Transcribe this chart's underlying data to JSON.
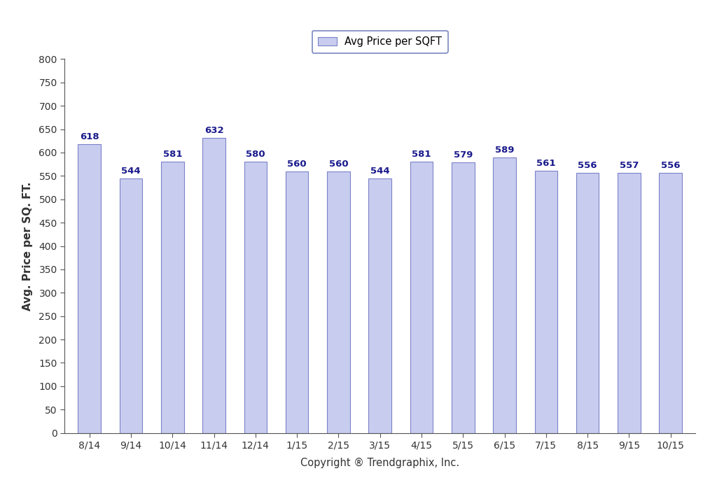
{
  "categories": [
    "8/14",
    "9/14",
    "10/14",
    "11/14",
    "12/14",
    "1/15",
    "2/15",
    "3/15",
    "4/15",
    "5/15",
    "6/15",
    "7/15",
    "8/15",
    "9/15",
    "10/15"
  ],
  "values": [
    618,
    544,
    581,
    632,
    580,
    560,
    560,
    544,
    581,
    579,
    589,
    561,
    556,
    557,
    556
  ],
  "bar_color": "#c8cdf0",
  "bar_edgecolor": "#7b82c8",
  "ylabel": "Avg. Price per SQ. FT.",
  "xlabel": "Copyright ® Trendgraphix, Inc.",
  "legend_label": "Avg Price per SQFT",
  "ylim": [
    0,
    800
  ],
  "yticks": [
    0,
    50,
    100,
    150,
    200,
    250,
    300,
    350,
    400,
    450,
    500,
    550,
    600,
    650,
    700,
    750,
    800
  ],
  "bar_width": 0.55,
  "label_fontsize": 9.5,
  "tick_fontsize": 10,
  "ylabel_fontsize": 11,
  "xlabel_fontsize": 10.5,
  "legend_fontsize": 10.5,
  "background_color": "#ffffff",
  "value_label_color": "#1a1a8c",
  "value_label_fontweight": "bold",
  "spine_color": "#555555",
  "legend_edgecolor": "#5a6ab0",
  "tick_color": "#333333"
}
